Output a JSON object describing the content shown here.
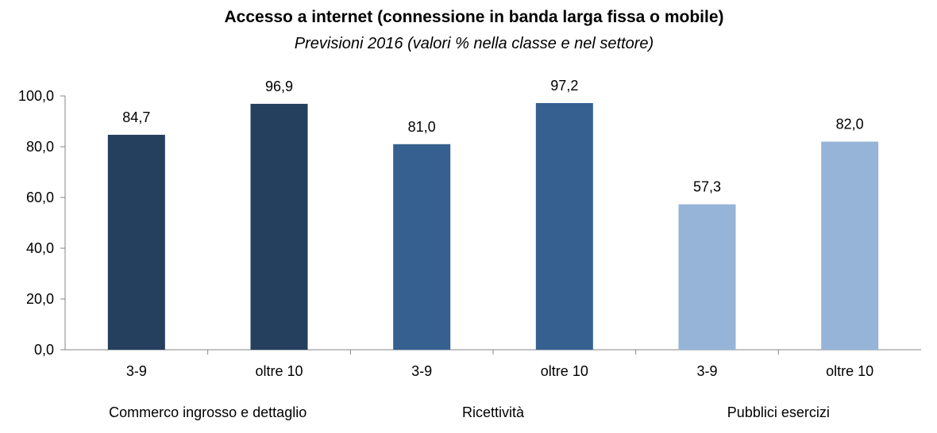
{
  "chart_data": {
    "type": "bar",
    "title": "Accesso a internet (connessione in banda  larga fissa o mobile)",
    "subtitle": "Previsioni 2016 (valori % nella classe e nel settore)",
    "ylim": [
      0,
      100
    ],
    "yticks": [
      "0,0",
      "20,0",
      "40,0",
      "60,0",
      "80,0",
      "100,0"
    ],
    "grid": false,
    "bars": [
      {
        "category": "3-9",
        "group": "Commerco ingrosso e dettaglio",
        "value": 84.7,
        "label": "84,7",
        "color": "#253F5F"
      },
      {
        "category": "oltre 10",
        "group": "Commerco ingrosso e dettaglio",
        "value": 96.9,
        "label": "96,9",
        "color": "#253F5F"
      },
      {
        "category": "3-9",
        "group": "Ricettività",
        "value": 81.0,
        "label": "81,0",
        "color": "#36608F"
      },
      {
        "category": "oltre 10",
        "group": "Ricettività",
        "value": 97.2,
        "label": "97,2",
        "color": "#36608F"
      },
      {
        "category": "3-9",
        "group": "Pubblici esercizi",
        "value": 57.3,
        "label": "57,3",
        "color": "#96B4D8"
      },
      {
        "category": "oltre 10",
        "group": "Pubblici esercizi",
        "value": 82.0,
        "label": "82,0",
        "color": "#96B4D8"
      }
    ],
    "groups": [
      "Commerco ingrosso e dettaglio",
      "Ricettività",
      "Pubblici esercizi"
    ]
  }
}
